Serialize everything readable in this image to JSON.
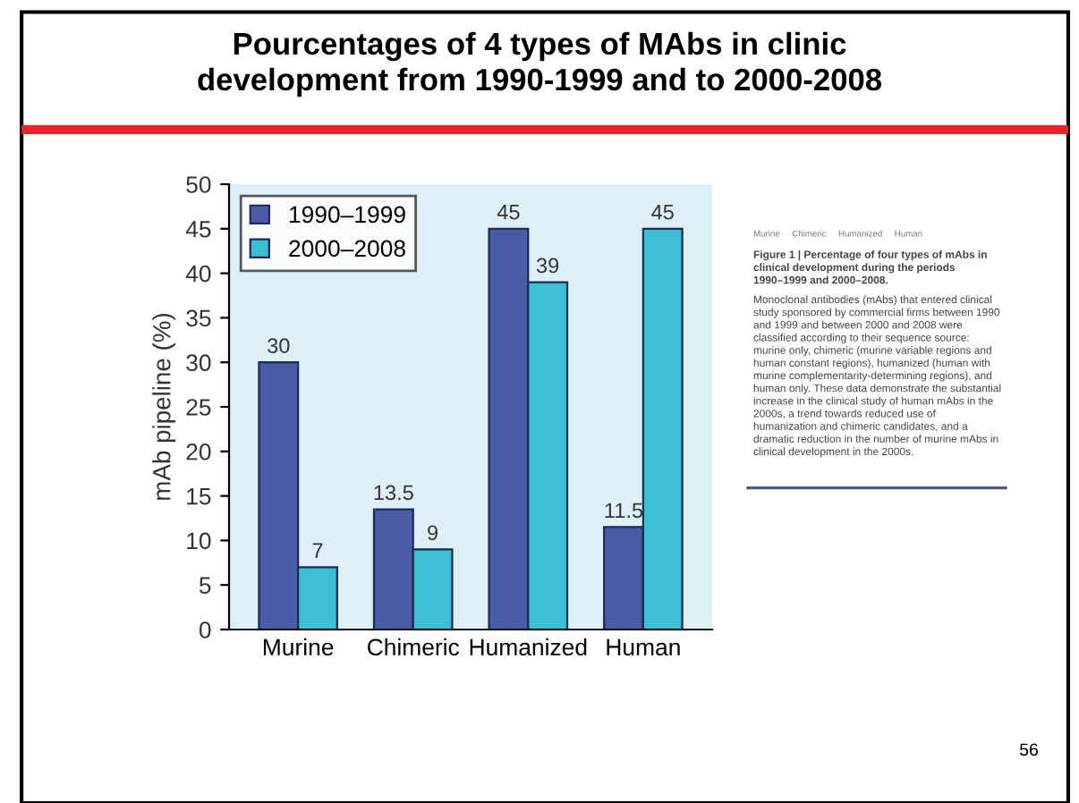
{
  "chart_data": {
    "type": "bar",
    "title": "Pourcentages of 4 types of MAbs in clinic\ndevelopment from 1990-1999 and to 2000-2008",
    "ylabel": "mAb pipeline (%)",
    "categories": [
      "Murine",
      "Chimeric",
      "Humanized",
      "Human"
    ],
    "series": [
      {
        "name": "1990–1999",
        "color": "#4a5ca6",
        "values": [
          30,
          13.5,
          45,
          11.5
        ]
      },
      {
        "name": "2000–2008",
        "color": "#3cbfd2",
        "values": [
          7,
          9,
          39,
          45
        ]
      }
    ],
    "ylim": [
      0,
      50
    ],
    "yticks": [
      0,
      5,
      10,
      15,
      20,
      25,
      30,
      35,
      40,
      45,
      50
    ],
    "grid": false,
    "legend": "top left",
    "data_labels": true,
    "annotations": [
      "Murine     Chimeric     Humanized     Human",
      "Figure 1 | Percentage of four types of mAbs in clinical development during the periods 1990–1999 and 2000–2008.",
      "Monoclonal antibodies (mAbs) that entered clinical study sponsored by commercial firms between 1990 and 1999 and between 2000 and 2008 were classified according to their sequence source: murine only, chimeric (murine variable regions and human constant regions), humanized (human with murine complementarity-determining regions), and human only. These data demonstrate the substantial increase in the clinical study of human mAbs in the 2000s, a trend towards reduced use of humanization and chimeric candidates, and a dramatic reduction in the number of murine mAbs in clinical development in the 2000s.",
      "56"
    ]
  }
}
